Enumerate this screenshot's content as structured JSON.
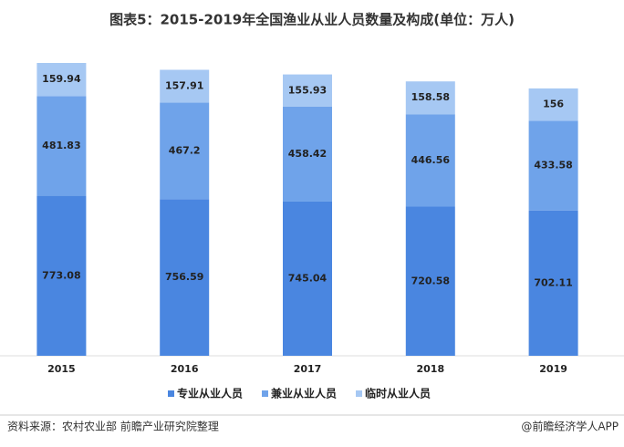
{
  "chart_data": {
    "type": "stacked-bar",
    "title": "图表5：2015-2019年全国渔业从业人员数量及构成(单位：万人)",
    "categories": [
      "2015",
      "2016",
      "2017",
      "2018",
      "2019"
    ],
    "series": [
      {
        "name": "专业从业人员",
        "color": "#4a86e0",
        "values": [
          773.08,
          756.59,
          745.04,
          720.58,
          702.11
        ]
      },
      {
        "name": "兼业从业人员",
        "color": "#6fa3ea",
        "values": [
          481.83,
          467.2,
          458.42,
          446.56,
          433.58
        ]
      },
      {
        "name": "临时从业人员",
        "color": "#a6c8f3",
        "values": [
          159.94,
          157.91,
          155.93,
          158.58,
          156
        ]
      }
    ],
    "source": "资料来源：农村农业部 前瞻产业研究院整理",
    "credit": "@前瞻经济学人APP"
  }
}
